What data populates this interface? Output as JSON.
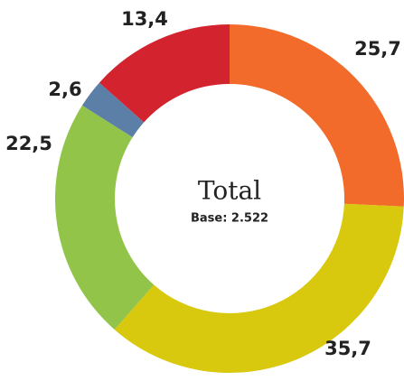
{
  "chart_data": {
    "type": "donut",
    "center_title": "Total",
    "center_subtitle": "Base: 2.522",
    "values": [
      25.7,
      35.7,
      22.5,
      2.6,
      13.4
    ],
    "value_labels": [
      "25,7",
      "35,7",
      "22,5",
      "2,6",
      "13,4"
    ],
    "colors": [
      "#f26b2a",
      "#d8c80e",
      "#93c44a",
      "#5b7fa6",
      "#d3232f"
    ]
  }
}
